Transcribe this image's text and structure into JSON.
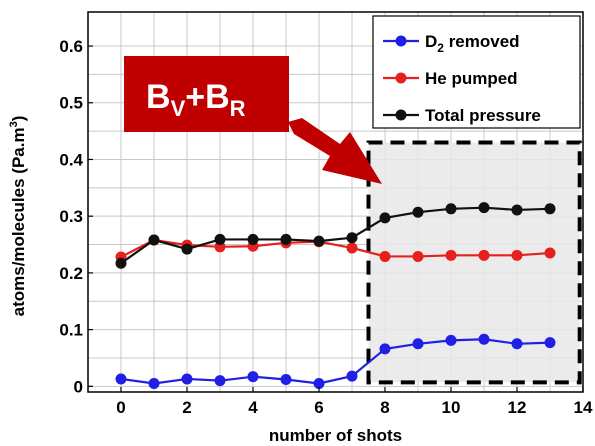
{
  "chart_data": {
    "type": "line",
    "title": "",
    "xlabel": "number of shots",
    "ylabel": "atoms/molecules (Pa.m",
    "ylabel_sup": "3",
    "ylabel_close": ")",
    "xlim": [
      -1,
      14
    ],
    "ylim": [
      -0.01,
      0.66
    ],
    "xticks": [
      0,
      2,
      4,
      6,
      8,
      10,
      12,
      14
    ],
    "yticks": [
      0,
      0.1,
      0.2,
      0.3,
      0.4,
      0.5,
      0.6
    ],
    "xtick_labels": [
      "0",
      "2",
      "4",
      "6",
      "8",
      "10",
      "12",
      "14"
    ],
    "ytick_labels": [
      "0",
      "0.1",
      "0.2",
      "0.3",
      "0.4",
      "0.5",
      "0.6"
    ],
    "grid": true,
    "legend_position": "top-right",
    "x": [
      0,
      1,
      2,
      3,
      4,
      5,
      6,
      7,
      8,
      9,
      10,
      11,
      12,
      13
    ],
    "series": [
      {
        "name_prefix": "D",
        "name_sub": "2",
        "name_suffix": " removed",
        "color": "#1f1fe6",
        "values": [
          0.013,
          0.005,
          0.013,
          0.01,
          0.017,
          0.012,
          0.005,
          0.018,
          0.066,
          0.075,
          0.081,
          0.083,
          0.075,
          0.077
        ]
      },
      {
        "name_prefix": "He pumped",
        "name_sub": "",
        "name_suffix": "",
        "color": "#e61f1f",
        "values": [
          0.228,
          0.258,
          0.249,
          0.246,
          0.247,
          0.253,
          0.255,
          0.244,
          0.229,
          0.229,
          0.231,
          0.231,
          0.231,
          0.235
        ]
      },
      {
        "name_prefix": "Total pressure",
        "name_sub": "",
        "name_suffix": "",
        "color": "#111111",
        "values": [
          0.217,
          0.258,
          0.242,
          0.259,
          0.259,
          0.259,
          0.256,
          0.262,
          0.297,
          0.307,
          0.313,
          0.315,
          0.311,
          0.313
        ]
      }
    ],
    "highlight_region": {
      "x_range": [
        7.5,
        13.9
      ],
      "y_range": [
        0.007,
        0.43
      ],
      "fill": "#e8e8e8"
    },
    "annotation": {
      "base": "B",
      "sub1": "V",
      "plus": "+",
      "sub2": "R",
      "box_color": "#c00000",
      "arrow_color": "#c00000"
    }
  }
}
